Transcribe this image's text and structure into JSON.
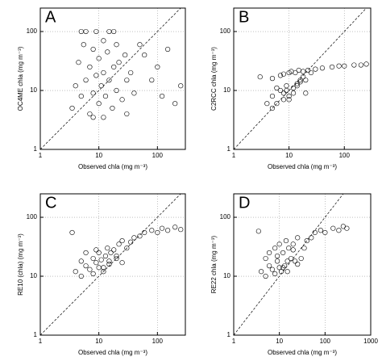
{
  "chart_data": [
    {
      "type": "scatter",
      "title": "A",
      "xlabel": "Observed chla (mg m⁻³)",
      "ylabel": "OC4ME chla (mg m⁻³)",
      "xscale": "log",
      "yscale": "log",
      "grid": true,
      "color": "#000000",
      "xlim": [
        1,
        300
      ],
      "ylim": [
        1,
        250
      ],
      "xticks": [
        1,
        10,
        100
      ],
      "yticks": [
        1,
        10,
        100
      ],
      "x": [
        3.5,
        4,
        4.5,
        5,
        5.5,
        6,
        6,
        7,
        7,
        8,
        8,
        9,
        9,
        10,
        10,
        11,
        12,
        12,
        13,
        14,
        15,
        15,
        17,
        18,
        20,
        20,
        22,
        25,
        28,
        30,
        35,
        40,
        50,
        60,
        80,
        100,
        120,
        150,
        200,
        250,
        5,
        8,
        12,
        18,
        30
      ],
      "values": [
        5,
        12,
        30,
        8,
        60,
        15,
        100,
        4,
        25,
        9,
        50,
        18,
        100,
        6,
        35,
        12,
        20,
        70,
        8,
        45,
        15,
        100,
        5,
        25,
        10,
        60,
        30,
        7,
        40,
        15,
        20,
        9,
        60,
        40,
        15,
        25,
        8,
        50,
        6,
        12,
        100,
        3.5,
        3.5,
        100,
        4
      ]
    },
    {
      "type": "scatter",
      "title": "B",
      "xlabel": "Observed chla (mg m⁻³)",
      "ylabel": "C2RCC chla (mg m⁻³)",
      "xscale": "log",
      "yscale": "log",
      "grid": true,
      "color": "#000000",
      "xlim": [
        1,
        300
      ],
      "ylim": [
        1,
        250
      ],
      "xticks": [
        1,
        10,
        100
      ],
      "yticks": [
        1,
        10,
        100
      ],
      "x": [
        3,
        4,
        5,
        5,
        6,
        7,
        8,
        8,
        9,
        10,
        10,
        11,
        12,
        13,
        14,
        15,
        16,
        18,
        20,
        22,
        25,
        30,
        40,
        60,
        80,
        100,
        150,
        200,
        250,
        5,
        6,
        7,
        8,
        9,
        10,
        12,
        14,
        16,
        18,
        20
      ],
      "values": [
        17,
        6,
        8,
        16,
        11,
        18,
        7,
        19,
        10,
        20,
        8,
        21,
        9,
        20,
        12,
        22,
        14,
        21,
        15,
        22,
        20,
        23,
        24,
        25,
        26,
        26,
        27,
        27,
        28,
        5,
        6,
        10,
        9,
        12,
        7,
        11,
        13,
        15,
        17,
        9
      ]
    },
    {
      "type": "scatter",
      "title": "C",
      "xlabel": "Observed chla (mg m⁻³)",
      "ylabel": "RE10 (chla) (mg m⁻³)",
      "xscale": "log",
      "yscale": "log",
      "grid": true,
      "color": "#000000",
      "xlim": [
        1,
        300
      ],
      "ylim": [
        1,
        250
      ],
      "xticks": [
        1,
        10,
        100
      ],
      "yticks": [
        1,
        10,
        100
      ],
      "x": [
        3.5,
        4,
        5,
        5,
        6,
        7,
        8,
        8,
        9,
        10,
        10,
        11,
        12,
        13,
        14,
        15,
        16,
        18,
        20,
        22,
        25,
        30,
        35,
        40,
        50,
        60,
        80,
        100,
        120,
        150,
        200,
        250,
        6,
        9,
        12,
        15,
        20,
        25
      ],
      "values": [
        55,
        12,
        10,
        18,
        15,
        13,
        20,
        11,
        17,
        14,
        25,
        19,
        12,
        22,
        30,
        16,
        25,
        28,
        20,
        35,
        40,
        30,
        38,
        45,
        48,
        55,
        60,
        55,
        65,
        60,
        68,
        62,
        25,
        28,
        14,
        18,
        22,
        17
      ]
    },
    {
      "type": "scatter",
      "title": "D",
      "xlabel": "Observed chla (mg m⁻³)",
      "ylabel": "RE22 chla (mg m⁻³)",
      "xscale": "log",
      "yscale": "log",
      "grid": true,
      "color": "#000000",
      "xlim": [
        1,
        1000
      ],
      "ylim": [
        1,
        250
      ],
      "xticks": [
        1,
        10,
        100,
        1000
      ],
      "yticks": [
        1,
        10,
        100
      ],
      "x": [
        3.5,
        4,
        5,
        5,
        6,
        7,
        8,
        8,
        9,
        10,
        10,
        11,
        12,
        13,
        14,
        15,
        16,
        18,
        20,
        22,
        25,
        30,
        35,
        40,
        50,
        60,
        80,
        100,
        150,
        200,
        250,
        300,
        6,
        9,
        12,
        15,
        20,
        25
      ],
      "values": [
        58,
        12,
        10,
        20,
        15,
        13,
        30,
        11,
        18,
        14,
        35,
        12,
        25,
        15,
        40,
        12,
        30,
        20,
        35,
        18,
        45,
        20,
        30,
        40,
        45,
        55,
        60,
        55,
        65,
        60,
        70,
        65,
        25,
        22,
        14,
        18,
        28,
        16
      ]
    }
  ]
}
